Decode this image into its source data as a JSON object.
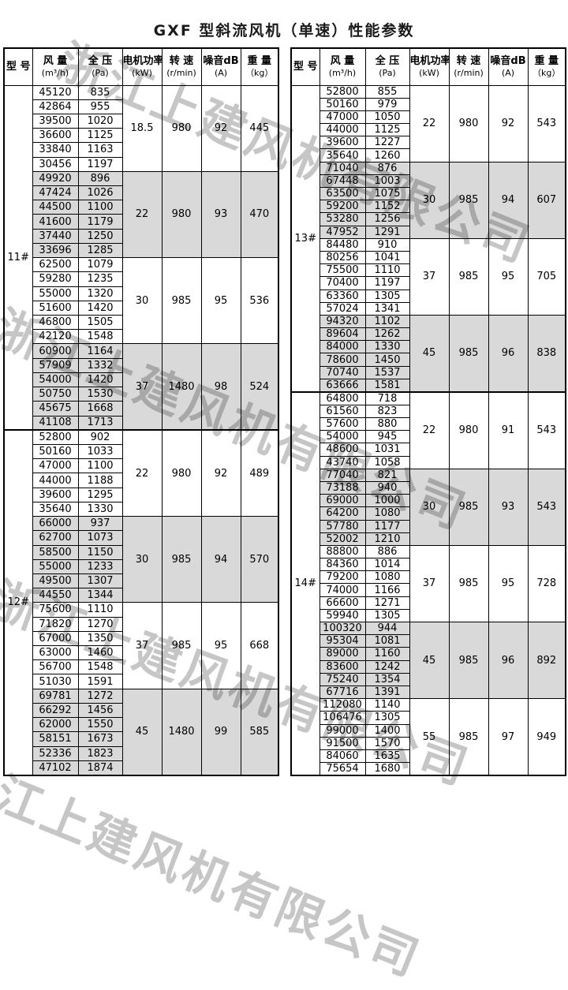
{
  "title": "GXF 型斜流风机（单速）性能参数",
  "watermark": {
    "text": "浙江上建风机有限公司"
  },
  "colors": {
    "shaded_row": "#d9d9d9",
    "border": "#000000",
    "watermark": "#c6c6c6"
  },
  "columns": [
    {
      "l1": "型 号",
      "l2": ""
    },
    {
      "l1": "风 量",
      "l2": "(m³/h)"
    },
    {
      "l1": "全 压",
      "l2": "(Pa)"
    },
    {
      "l1": "电机功率",
      "l2": "(kW)"
    },
    {
      "l1": "转 速",
      "l2": "(r/min)"
    },
    {
      "l1": "噪音dB",
      "l2": "(A)"
    },
    {
      "l1": "重 量",
      "l2": "（kg）"
    }
  ],
  "tables": [
    {
      "sections": [
        {
          "model": "11#",
          "groups": [
            {
              "shaded": false,
              "power": "18.5",
              "speed": "980",
              "noise": "92",
              "weight": "445",
              "rows": [
                [
                  "45120",
                  "835"
                ],
                [
                  "42864",
                  "955"
                ],
                [
                  "39500",
                  "1020"
                ],
                [
                  "36600",
                  "1125"
                ],
                [
                  "33840",
                  "1163"
                ],
                [
                  "30456",
                  "1197"
                ]
              ]
            },
            {
              "shaded": true,
              "power": "22",
              "speed": "980",
              "noise": "93",
              "weight": "470",
              "rows": [
                [
                  "49920",
                  "896"
                ],
                [
                  "47424",
                  "1026"
                ],
                [
                  "44500",
                  "1100"
                ],
                [
                  "41600",
                  "1179"
                ],
                [
                  "37440",
                  "1250"
                ],
                [
                  "33696",
                  "1285"
                ]
              ]
            },
            {
              "shaded": false,
              "power": "30",
              "speed": "985",
              "noise": "95",
              "weight": "536",
              "rows": [
                [
                  "62500",
                  "1079"
                ],
                [
                  "59280",
                  "1235"
                ],
                [
                  "55000",
                  "1320"
                ],
                [
                  "51600",
                  "1420"
                ],
                [
                  "46800",
                  "1505"
                ],
                [
                  "42120",
                  "1548"
                ]
              ]
            },
            {
              "shaded": true,
              "power": "37",
              "speed": "1480",
              "noise": "98",
              "weight": "524",
              "rows": [
                [
                  "60900",
                  "1164"
                ],
                [
                  "57909",
                  "1332"
                ],
                [
                  "54000",
                  "1420"
                ],
                [
                  "50750",
                  "1530"
                ],
                [
                  "45675",
                  "1668"
                ],
                [
                  "41108",
                  "1713"
                ]
              ]
            }
          ]
        },
        {
          "model": "12#",
          "groups": [
            {
              "shaded": false,
              "power": "22",
              "speed": "980",
              "noise": "92",
              "weight": "489",
              "rows": [
                [
                  "52800",
                  "902"
                ],
                [
                  "50160",
                  "1033"
                ],
                [
                  "47000",
                  "1100"
                ],
                [
                  "44000",
                  "1188"
                ],
                [
                  "39600",
                  "1295"
                ],
                [
                  "35640",
                  "1330"
                ]
              ]
            },
            {
              "shaded": true,
              "power": "30",
              "speed": "985",
              "noise": "94",
              "weight": "570",
              "rows": [
                [
                  "66000",
                  "937"
                ],
                [
                  "62700",
                  "1073"
                ],
                [
                  "58500",
                  "1150"
                ],
                [
                  "55000",
                  "1233"
                ],
                [
                  "49500",
                  "1307"
                ],
                [
                  "44550",
                  "1344"
                ]
              ]
            },
            {
              "shaded": false,
              "power": "37",
              "speed": "985",
              "noise": "95",
              "weight": "668",
              "rows": [
                [
                  "75600",
                  "1110"
                ],
                [
                  "71820",
                  "1270"
                ],
                [
                  "67000",
                  "1350"
                ],
                [
                  "63000",
                  "1460"
                ],
                [
                  "56700",
                  "1548"
                ],
                [
                  "51030",
                  "1591"
                ]
              ]
            },
            {
              "shaded": true,
              "power": "45",
              "speed": "1480",
              "noise": "99",
              "weight": "585",
              "rows": [
                [
                  "69781",
                  "1272"
                ],
                [
                  "66292",
                  "1456"
                ],
                [
                  "62000",
                  "1550"
                ],
                [
                  "58151",
                  "1673"
                ],
                [
                  "52336",
                  "1823"
                ],
                [
                  "47102",
                  "1874"
                ]
              ]
            }
          ]
        }
      ]
    },
    {
      "sections": [
        {
          "model": "13#",
          "groups": [
            {
              "shaded": false,
              "power": "22",
              "speed": "980",
              "noise": "92",
              "weight": "543",
              "rows": [
                [
                  "52800",
                  "855"
                ],
                [
                  "50160",
                  "979"
                ],
                [
                  "47000",
                  "1050"
                ],
                [
                  "44000",
                  "1125"
                ],
                [
                  "39600",
                  "1227"
                ],
                [
                  "35640",
                  "1260"
                ]
              ]
            },
            {
              "shaded": true,
              "power": "30",
              "speed": "985",
              "noise": "94",
              "weight": "607",
              "rows": [
                [
                  "71040",
                  "876"
                ],
                [
                  "67448",
                  "1003"
                ],
                [
                  "63500",
                  "1075"
                ],
                [
                  "59200",
                  "1152"
                ],
                [
                  "53280",
                  "1256"
                ],
                [
                  "47952",
                  "1291"
                ]
              ]
            },
            {
              "shaded": false,
              "power": "37",
              "speed": "985",
              "noise": "95",
              "weight": "705",
              "rows": [
                [
                  "84480",
                  "910"
                ],
                [
                  "80256",
                  "1041"
                ],
                [
                  "75500",
                  "1110"
                ],
                [
                  "70400",
                  "1197"
                ],
                [
                  "63360",
                  "1305"
                ],
                [
                  "57024",
                  "1341"
                ]
              ]
            },
            {
              "shaded": true,
              "power": "45",
              "speed": "985",
              "noise": "96",
              "weight": "838",
              "rows": [
                [
                  "94320",
                  "1102"
                ],
                [
                  "89604",
                  "1262"
                ],
                [
                  "84000",
                  "1330"
                ],
                [
                  "78600",
                  "1450"
                ],
                [
                  "70740",
                  "1537"
                ],
                [
                  "63666",
                  "1581"
                ]
              ]
            }
          ]
        },
        {
          "model": "14#",
          "groups": [
            {
              "shaded": false,
              "power": "22",
              "speed": "980",
              "noise": "91",
              "weight": "543",
              "rows": [
                [
                  "64800",
                  "718"
                ],
                [
                  "61560",
                  "823"
                ],
                [
                  "57600",
                  "880"
                ],
                [
                  "54000",
                  "945"
                ],
                [
                  "48600",
                  "1031"
                ],
                [
                  "43740",
                  "1058"
                ]
              ]
            },
            {
              "shaded": true,
              "power": "30",
              "speed": "985",
              "noise": "93",
              "weight": "543",
              "rows": [
                [
                  "77040",
                  "821"
                ],
                [
                  "73188",
                  "940"
                ],
                [
                  "69000",
                  "1000"
                ],
                [
                  "64200",
                  "1080"
                ],
                [
                  "57780",
                  "1177"
                ],
                [
                  "52002",
                  "1210"
                ]
              ]
            },
            {
              "shaded": false,
              "power": "37",
              "speed": "985",
              "noise": "95",
              "weight": "728",
              "rows": [
                [
                  "88800",
                  "886"
                ],
                [
                  "84360",
                  "1014"
                ],
                [
                  "79200",
                  "1080"
                ],
                [
                  "74000",
                  "1166"
                ],
                [
                  "66600",
                  "1271"
                ],
                [
                  "59940",
                  "1305"
                ]
              ]
            },
            {
              "shaded": true,
              "power": "45",
              "speed": "985",
              "noise": "96",
              "weight": "892",
              "rows": [
                [
                  "100320",
                  "944"
                ],
                [
                  "95304",
                  "1081"
                ],
                [
                  "89000",
                  "1160"
                ],
                [
                  "83600",
                  "1242"
                ],
                [
                  "75240",
                  "1354"
                ],
                [
                  "67716",
                  "1391"
                ]
              ]
            },
            {
              "shaded": false,
              "power": "55",
              "speed": "985",
              "noise": "97",
              "weight": "949",
              "rows": [
                [
                  "112080",
                  "1140"
                ],
                [
                  "106476",
                  "1305"
                ],
                [
                  "99000",
                  "1400"
                ],
                [
                  "91500",
                  "1570"
                ],
                [
                  "84060",
                  "1635"
                ],
                [
                  "75654",
                  "1680"
                ]
              ]
            }
          ]
        }
      ]
    }
  ]
}
